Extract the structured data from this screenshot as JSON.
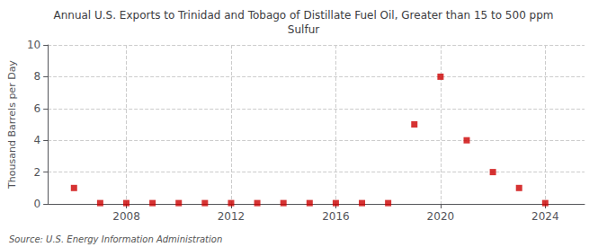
{
  "chart_data": {
    "type": "scatter",
    "title": "Annual U.S. Exports to Trinidad and Tobago of Distillate Fuel Oil, Greater than 15 to 500 ppm\nSulfur",
    "ylabel": "Thousand Barrels per Day",
    "annotations": [
      "Source: U.S. Energy Information Administration"
    ],
    "x": [
      2006,
      2007,
      2008,
      2009,
      2010,
      2011,
      2012,
      2013,
      2014,
      2015,
      2016,
      2017,
      2018,
      2019,
      2020,
      2021,
      2022,
      2023,
      2024
    ],
    "values": [
      1.0,
      0.05,
      0.05,
      0.05,
      0.05,
      0.05,
      0.05,
      0.05,
      0.05,
      0.05,
      0.05,
      0.05,
      0.05,
      5.0,
      8.0,
      4.0,
      2.0,
      1.0,
      0.05
    ],
    "color": "#cc0000",
    "marker": "square",
    "xlim": [
      2005.0,
      2025.5
    ],
    "xticks": [
      2008,
      2012,
      2016,
      2020,
      2024
    ],
    "ylim": [
      0,
      10
    ],
    "yticks": [
      0,
      2,
      4,
      6,
      8,
      10
    ],
    "grid": true
  }
}
